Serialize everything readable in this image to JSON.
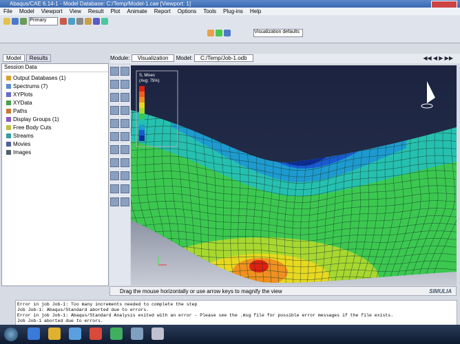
{
  "window": {
    "title": "Abaqus/CAE 6.14-1 - Model Database: C:/Temp/Model-1.cae [Viewport: 1]"
  },
  "menu": [
    "File",
    "Model",
    "Viewport",
    "View",
    "Result",
    "Plot",
    "Animate",
    "Report",
    "Options",
    "Tools",
    "Plug-ins",
    "Help"
  ],
  "toolbar": {
    "combo": "Primary",
    "render": "Visualization defaults"
  },
  "context": {
    "module_label": "Module:",
    "module": "Visualization",
    "model_label": "Model:",
    "model": "C:/Temp/Job-1.odb"
  },
  "tabs": [
    "Model",
    "Results"
  ],
  "tree": {
    "root": "Session Data",
    "items": [
      "Output Databases (1)",
      "Spectrums (7)",
      "XYPlots",
      "XYData",
      "Paths",
      "Display Groups (1)",
      "Free Body Cuts",
      "Streams",
      "Movies",
      "Images"
    ]
  },
  "legend": {
    "title": "S, Mises",
    "subtitle": "(Avg: 75%)"
  },
  "prompt": "Drag the mouse horizontally or use arrow keys to magnify the view",
  "messages": [
    "Error in job Job-1: Too many increments needed to complete the step",
    "Job Job-1: Abaqus/Standard aborted due to errors.",
    "Error in job Job-1: Abaqus/Standard Analysis exited with an error - Please see the .msg file for possible error messages if the file exists.",
    "Job Job-1 aborted due to errors."
  ],
  "brand": "SIMULIA"
}
